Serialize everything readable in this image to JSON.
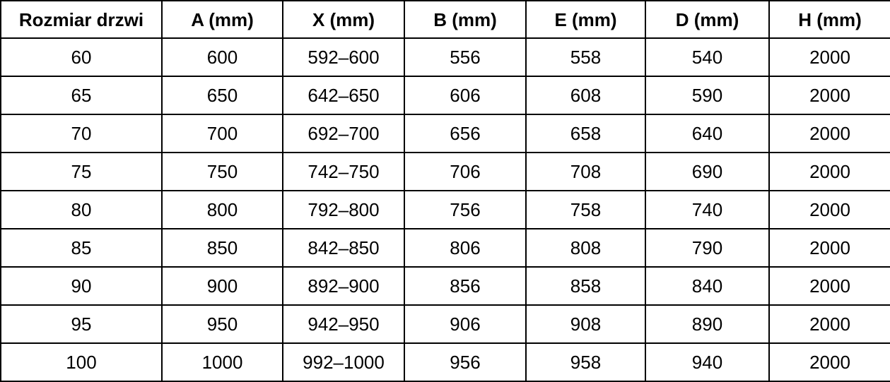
{
  "table": {
    "headers": [
      "Rozmiar drzwi",
      "A (mm)",
      "X (mm)",
      "B (mm)",
      "E (mm)",
      "D (mm)",
      "H (mm)"
    ],
    "rows": [
      [
        "60",
        "600",
        "592–600",
        "556",
        "558",
        "540",
        "2000"
      ],
      [
        "65",
        "650",
        "642–650",
        "606",
        "608",
        "590",
        "2000"
      ],
      [
        "70",
        "700",
        "692–700",
        "656",
        "658",
        "640",
        "2000"
      ],
      [
        "75",
        "750",
        "742–750",
        "706",
        "708",
        "690",
        "2000"
      ],
      [
        "80",
        "800",
        "792–800",
        "756",
        "758",
        "740",
        "2000"
      ],
      [
        "85",
        "850",
        "842–850",
        "806",
        "808",
        "790",
        "2000"
      ],
      [
        "90",
        "900",
        "892–900",
        "856",
        "858",
        "840",
        "2000"
      ],
      [
        "95",
        "950",
        "942–950",
        "906",
        "908",
        "890",
        "2000"
      ],
      [
        "100",
        "1000",
        "992–1000",
        "956",
        "958",
        "940",
        "2000"
      ]
    ]
  },
  "colors": {
    "border": "#000000",
    "text": "#000000",
    "background": "#ffffff"
  }
}
